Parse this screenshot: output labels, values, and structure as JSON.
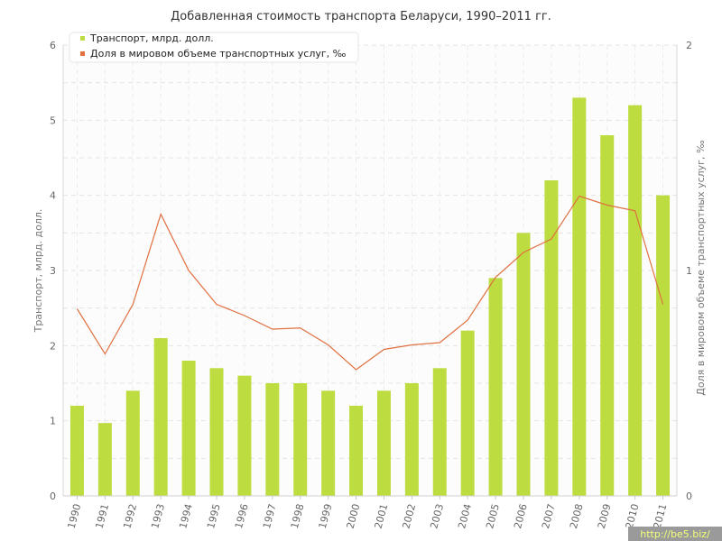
{
  "chart_data": {
    "type": "bar+line",
    "title": "Добавленная стоимость транспорта Беларуси, 1990–2011 гг.",
    "categories": [
      "1990",
      "1991",
      "1992",
      "1993",
      "1994",
      "1995",
      "1996",
      "1997",
      "1998",
      "1999",
      "2000",
      "2001",
      "2002",
      "2003",
      "2004",
      "2005",
      "2006",
      "2007",
      "2008",
      "2009",
      "2010",
      "2011"
    ],
    "series": [
      {
        "name": "Транспорт, млрд. долл.",
        "type": "bar",
        "axis": "left",
        "color": "#bddc3f",
        "values": [
          1.2,
          0.97,
          1.4,
          2.1,
          1.8,
          1.7,
          1.6,
          1.5,
          1.5,
          1.4,
          1.2,
          1.4,
          1.5,
          1.7,
          2.2,
          2.9,
          3.5,
          4.2,
          5.3,
          4.8,
          5.2,
          4.0
        ]
      },
      {
        "name": "Доля в мировом объеме транспортных услуг, ‰",
        "type": "line",
        "axis": "right",
        "color": "#e07040",
        "values": [
          0.83,
          0.63,
          0.85,
          1.25,
          1.0,
          0.85,
          0.8,
          0.74,
          0.745,
          0.67,
          0.56,
          0.65,
          0.67,
          0.68,
          0.78,
          0.97,
          1.08,
          1.14,
          1.33,
          1.29,
          1.265,
          0.85
        ]
      }
    ],
    "ylabel_left": "Транспорт, млрд. долл.",
    "ylabel_right": "Доля в мировом объеме транспортных услуг, ‰",
    "ylim_left": [
      0,
      6
    ],
    "ylim_right": [
      0,
      2
    ],
    "yticks_left": [
      "0",
      "1",
      "2",
      "3",
      "4",
      "5",
      "6"
    ],
    "yticks_right": [
      "0",
      "1",
      "2"
    ],
    "grid": true,
    "legend_position": "top-left"
  },
  "watermark": "http://be5.biz/"
}
